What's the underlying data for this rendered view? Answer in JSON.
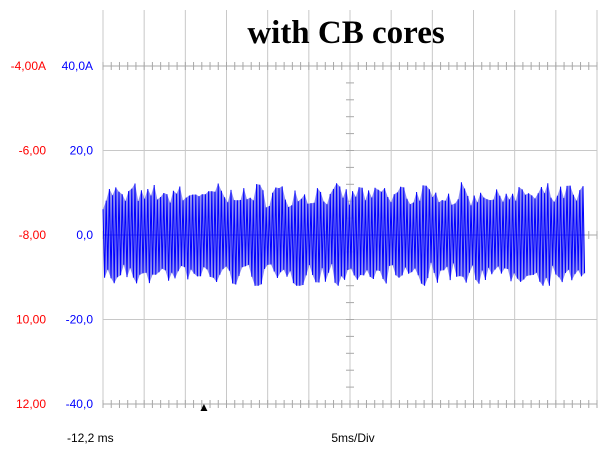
{
  "chart_data": {
    "type": "line",
    "title": "with CB cores",
    "left_axis": {
      "color": "#ff0000",
      "tick_labels": [
        "-4,00A",
        "-6,00",
        "-8,00",
        "10,00",
        "12,00"
      ]
    },
    "right_axis": {
      "color": "#0000ff",
      "tick_labels": [
        "40,0A",
        "20,0",
        "0,0",
        "-20,0",
        "-40,0"
      ],
      "ylim": [
        -40,
        40
      ]
    },
    "x_start_label": "-12,2 ms",
    "timebase_label": "5ms/Div",
    "grid": true,
    "divisions": {
      "x": 12,
      "y": 4
    },
    "series": [
      {
        "color": "#0000ff",
        "fill": "#7b7bf0",
        "x_range_div": [
          0,
          11.7
        ],
        "envelope": {
          "upper": 10.5,
          "lower": -10.5,
          "peak_max": 13,
          "peak_min": -12
        },
        "oscillation": "dense bursts of about 2 periods per grid division"
      }
    ],
    "trigger_marker": "▲"
  }
}
